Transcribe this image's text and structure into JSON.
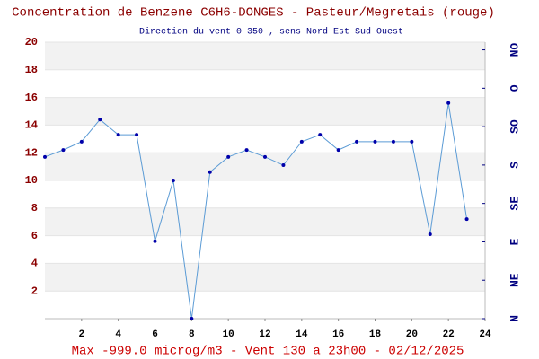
{
  "chart_data": {
    "type": "line",
    "title": "Concentration de Benzene C6H6-DONGES - Pasteur/Megretais (rouge)",
    "subtitle": "Direction du vent 0-350 , sens Nord-Est-Sud-Ouest",
    "footer": "Max -999.0 microg/m3 - Vent 130  a 23h00 - 02/12/2025",
    "x": [
      0,
      1,
      2,
      3,
      4,
      5,
      6,
      7,
      8,
      9,
      10,
      11,
      12,
      13,
      14,
      15,
      16,
      17,
      18,
      19,
      20,
      21,
      22,
      23
    ],
    "series": [
      {
        "color": "#5b9bd5",
        "values": [
          11.7,
          12.2,
          12.8,
          14.4,
          13.3,
          13.3,
          5.6,
          10.0,
          0,
          10.6,
          11.7,
          12.2,
          11.7,
          11.1,
          12.8,
          13.3,
          12.2,
          12.8,
          12.8,
          12.8,
          12.8,
          6.1,
          15.6,
          7.2
        ]
      }
    ],
    "xlim": [
      0,
      24
    ],
    "xticks": [
      2,
      4,
      6,
      8,
      10,
      12,
      14,
      16,
      18,
      20,
      22,
      24
    ],
    "ylim": [
      0,
      20
    ],
    "yticks": [
      2,
      4,
      6,
      8,
      10,
      12,
      14,
      16,
      18,
      20
    ],
    "y2lim": [
      0,
      324
    ],
    "y2ticks": [
      {
        "value": 0,
        "label": "N"
      },
      {
        "value": 45,
        "label": "NE"
      },
      {
        "value": 90,
        "label": "E"
      },
      {
        "value": 135,
        "label": "SE"
      },
      {
        "value": 180,
        "label": "S"
      },
      {
        "value": 225,
        "label": "SO"
      },
      {
        "value": 270,
        "label": "O"
      },
      {
        "value": 315,
        "label": "NO"
      }
    ]
  }
}
